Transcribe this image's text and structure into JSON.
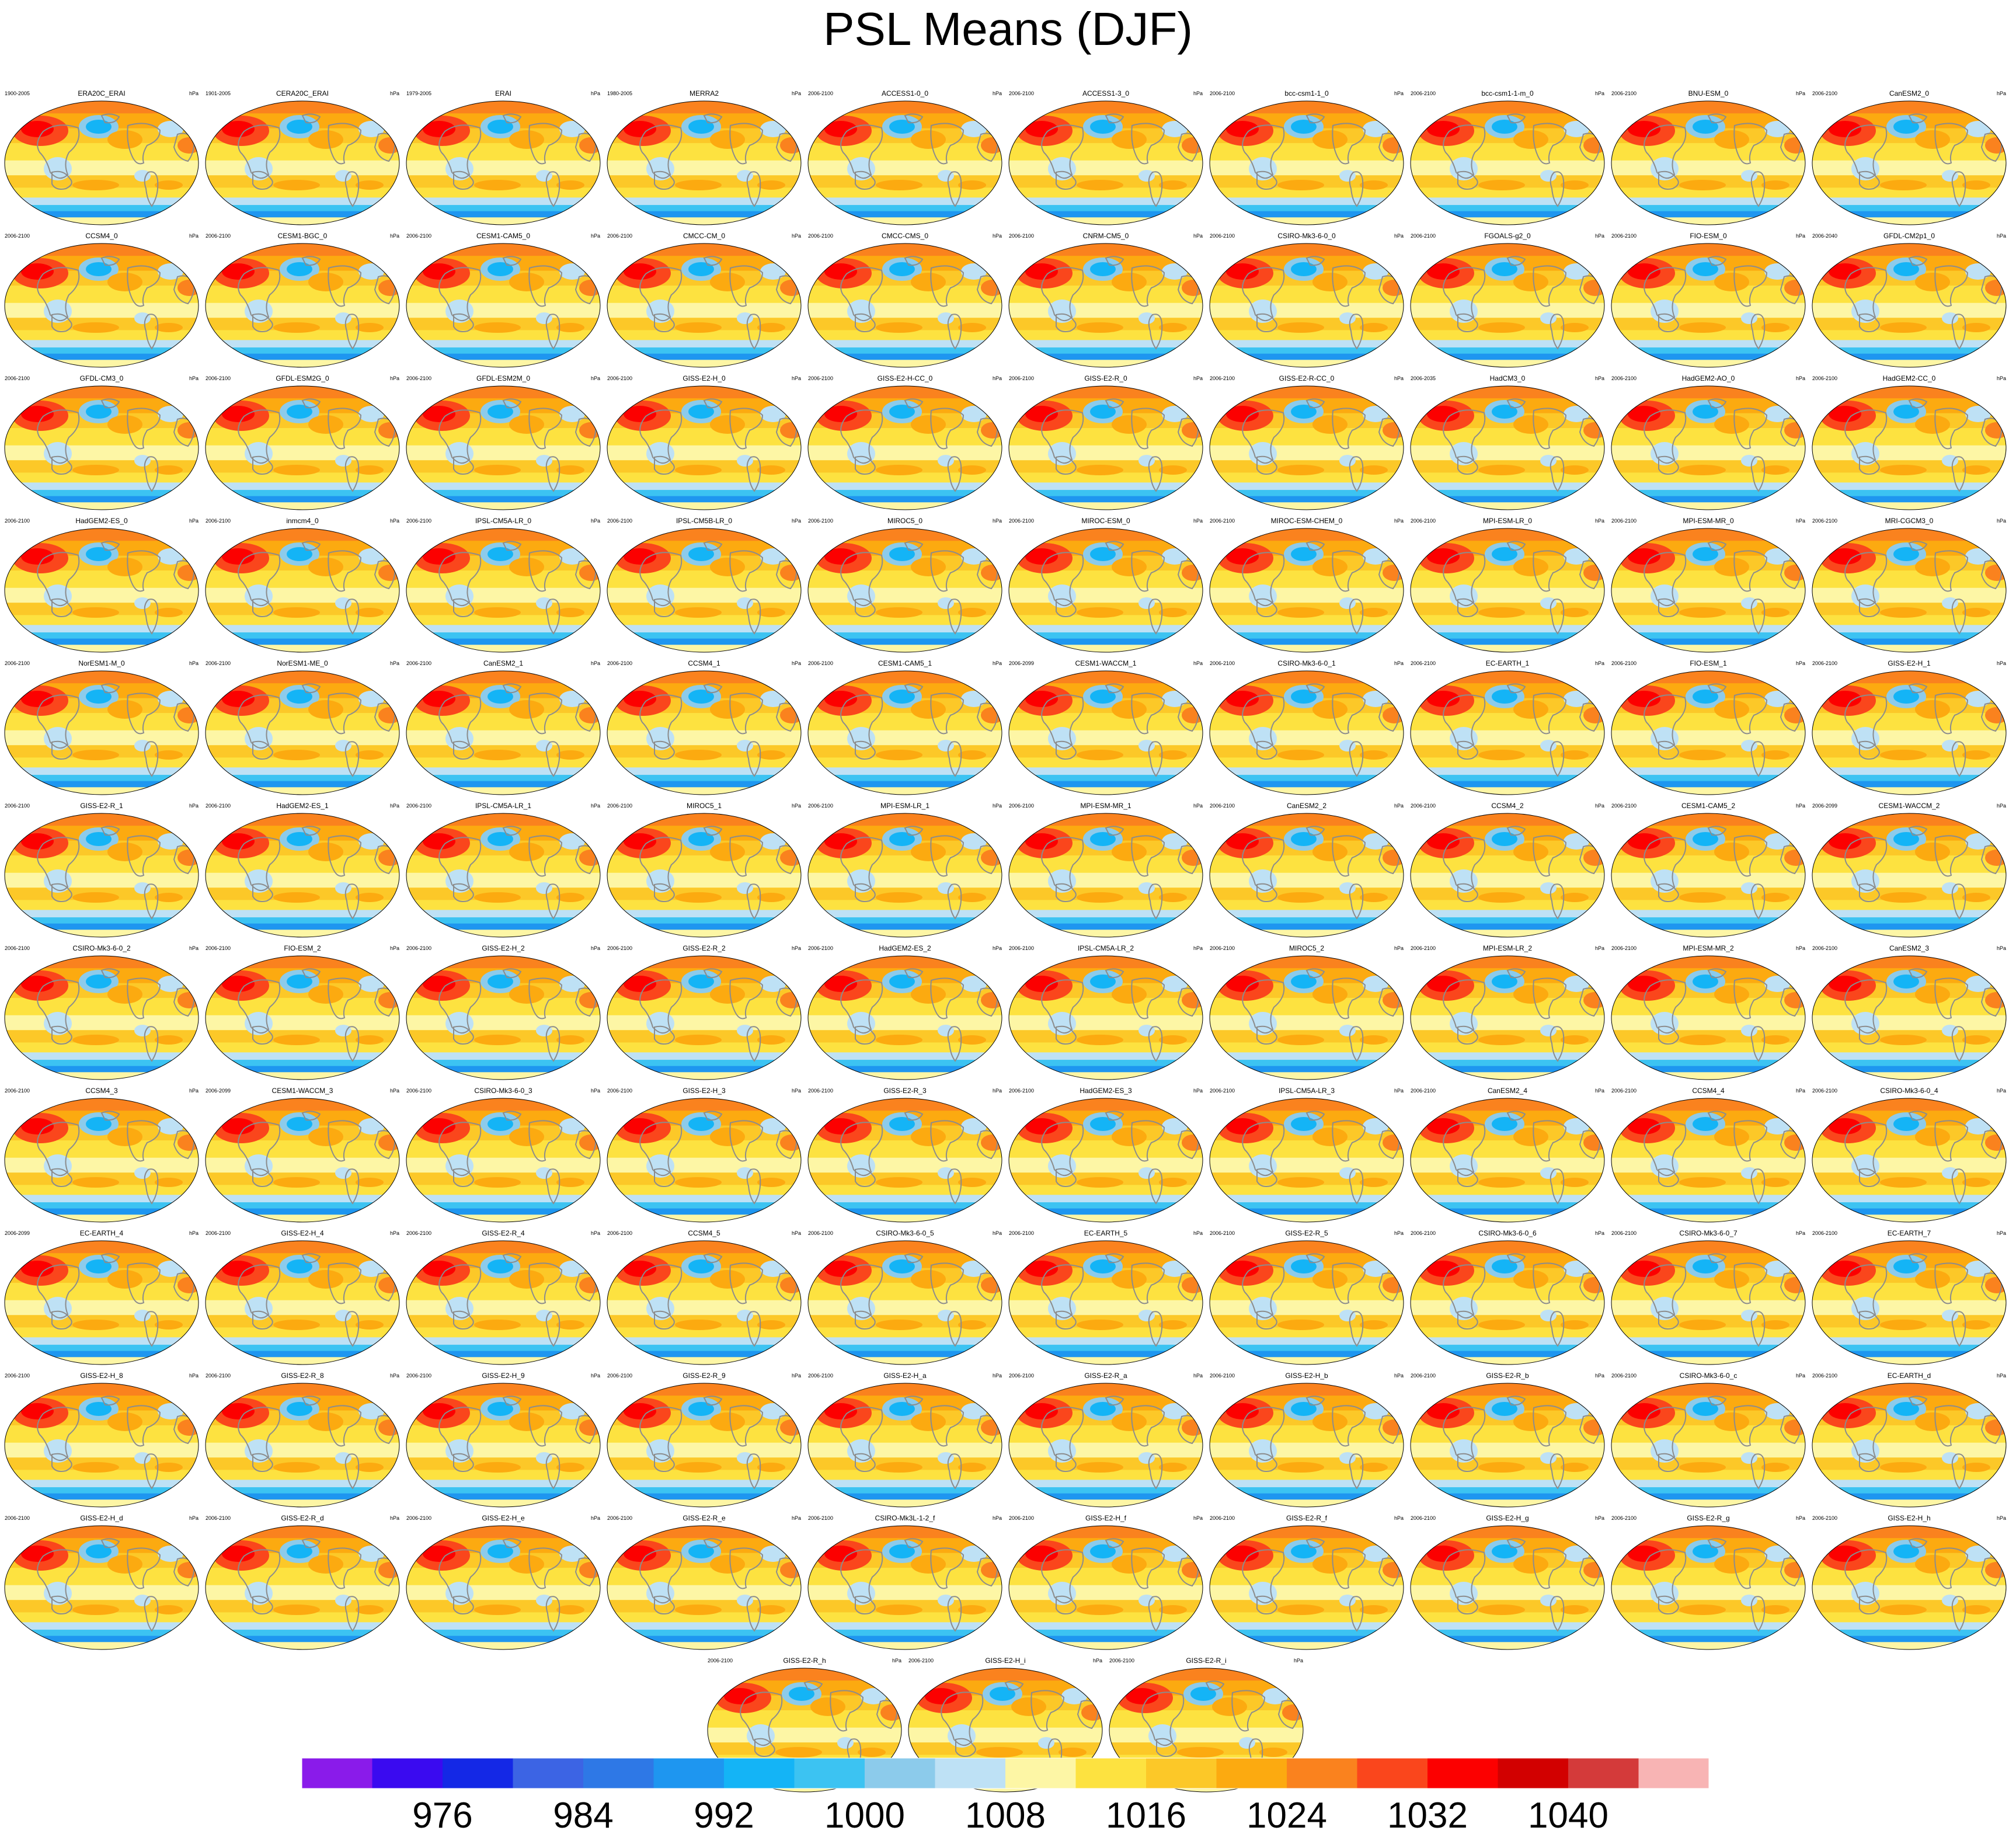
{
  "title": "PSL Means (DJF)",
  "chart_data": {
    "type": "heatmap",
    "title": "PSL Means (DJF)",
    "panel_unit": "hPa",
    "colorbar": {
      "colors": [
        "#8a1bea",
        "#3a0af0",
        "#1428e6",
        "#3c64e4",
        "#2e78e6",
        "#1e96f0",
        "#14b4f6",
        "#3cc3f2",
        "#8ccbeb",
        "#bee1f5",
        "#fdf6a5",
        "#fde240",
        "#fcc828",
        "#fcaa10",
        "#fa821e",
        "#fa461c",
        "#fc0000",
        "#d20000",
        "#d43a3a",
        "#f8b4b4"
      ],
      "ticks": [
        "976",
        "984",
        "992",
        "1000",
        "1008",
        "1016",
        "1024",
        "1032",
        "1040"
      ],
      "tick_values": [
        976,
        984,
        992,
        1000,
        1008,
        1016,
        1024,
        1032,
        1040
      ]
    },
    "panels": [
      {
        "name": "ERA20C_ERAI",
        "period": "1900-2005"
      },
      {
        "name": "CERA20C_ERAI",
        "period": "1901-2005"
      },
      {
        "name": "ERAI",
        "period": "1979-2005"
      },
      {
        "name": "MERRA2",
        "period": "1980-2005"
      },
      {
        "name": "ACCESS1-0_0",
        "period": "2006-2100"
      },
      {
        "name": "ACCESS1-3_0",
        "period": "2006-2100"
      },
      {
        "name": "bcc-csm1-1_0",
        "period": "2006-2100"
      },
      {
        "name": "bcc-csm1-1-m_0",
        "period": "2006-2100"
      },
      {
        "name": "BNU-ESM_0",
        "period": "2006-2100"
      },
      {
        "name": "CanESM2_0",
        "period": "2006-2100"
      },
      {
        "name": "CCSM4_0",
        "period": "2006-2100"
      },
      {
        "name": "CESM1-BGC_0",
        "period": "2006-2100"
      },
      {
        "name": "CESM1-CAM5_0",
        "period": "2006-2100"
      },
      {
        "name": "CMCC-CM_0",
        "period": "2006-2100"
      },
      {
        "name": "CMCC-CMS_0",
        "period": "2006-2100"
      },
      {
        "name": "CNRM-CM5_0",
        "period": "2006-2100"
      },
      {
        "name": "CSIRO-Mk3-6-0_0",
        "period": "2006-2100"
      },
      {
        "name": "FGOALS-g2_0",
        "period": "2006-2100"
      },
      {
        "name": "FIO-ESM_0",
        "period": "2006-2100"
      },
      {
        "name": "GFDL-CM2p1_0",
        "period": "2006-2040"
      },
      {
        "name": "GFDL-CM3_0",
        "period": "2006-2100"
      },
      {
        "name": "GFDL-ESM2G_0",
        "period": "2006-2100"
      },
      {
        "name": "GFDL-ESM2M_0",
        "period": "2006-2100"
      },
      {
        "name": "GISS-E2-H_0",
        "period": "2006-2100"
      },
      {
        "name": "GISS-E2-H-CC_0",
        "period": "2006-2100"
      },
      {
        "name": "GISS-E2-R_0",
        "period": "2006-2100"
      },
      {
        "name": "GISS-E2-R-CC_0",
        "period": "2006-2100"
      },
      {
        "name": "HadCM3_0",
        "period": "2006-2035"
      },
      {
        "name": "HadGEM2-AO_0",
        "period": "2006-2100"
      },
      {
        "name": "HadGEM2-CC_0",
        "period": "2006-2100"
      },
      {
        "name": "HadGEM2-ES_0",
        "period": "2006-2100"
      },
      {
        "name": "inmcm4_0",
        "period": "2006-2100"
      },
      {
        "name": "IPSL-CM5A-LR_0",
        "period": "2006-2100"
      },
      {
        "name": "IPSL-CM5B-LR_0",
        "period": "2006-2100"
      },
      {
        "name": "MIROC5_0",
        "period": "2006-2100"
      },
      {
        "name": "MIROC-ESM_0",
        "period": "2006-2100"
      },
      {
        "name": "MIROC-ESM-CHEM_0",
        "period": "2006-2100"
      },
      {
        "name": "MPI-ESM-LR_0",
        "period": "2006-2100"
      },
      {
        "name": "MPI-ESM-MR_0",
        "period": "2006-2100"
      },
      {
        "name": "MRI-CGCM3_0",
        "period": "2006-2100"
      },
      {
        "name": "NorESM1-M_0",
        "period": "2006-2100"
      },
      {
        "name": "NorESM1-ME_0",
        "period": "2006-2100"
      },
      {
        "name": "CanESM2_1",
        "period": "2006-2100"
      },
      {
        "name": "CCSM4_1",
        "period": "2006-2100"
      },
      {
        "name": "CESM1-CAM5_1",
        "period": "2006-2100"
      },
      {
        "name": "CESM1-WACCM_1",
        "period": "2006-2099"
      },
      {
        "name": "CSIRO-Mk3-6-0_1",
        "period": "2006-2100"
      },
      {
        "name": "EC-EARTH_1",
        "period": "2006-2100"
      },
      {
        "name": "FIO-ESM_1",
        "period": "2006-2100"
      },
      {
        "name": "GISS-E2-H_1",
        "period": "2006-2100"
      },
      {
        "name": "GISS-E2-R_1",
        "period": "2006-2100"
      },
      {
        "name": "HadGEM2-ES_1",
        "period": "2006-2100"
      },
      {
        "name": "IPSL-CM5A-LR_1",
        "period": "2006-2100"
      },
      {
        "name": "MIROC5_1",
        "period": "2006-2100"
      },
      {
        "name": "MPI-ESM-LR_1",
        "period": "2006-2100"
      },
      {
        "name": "MPI-ESM-MR_1",
        "period": "2006-2100"
      },
      {
        "name": "CanESM2_2",
        "period": "2006-2100"
      },
      {
        "name": "CCSM4_2",
        "period": "2006-2100"
      },
      {
        "name": "CESM1-CAM5_2",
        "period": "2006-2100"
      },
      {
        "name": "CESM1-WACCM_2",
        "period": "2006-2099"
      },
      {
        "name": "CSIRO-Mk3-6-0_2",
        "period": "2006-2100"
      },
      {
        "name": "FIO-ESM_2",
        "period": "2006-2100"
      },
      {
        "name": "GISS-E2-H_2",
        "period": "2006-2100"
      },
      {
        "name": "GISS-E2-R_2",
        "period": "2006-2100"
      },
      {
        "name": "HadGEM2-ES_2",
        "period": "2006-2100"
      },
      {
        "name": "IPSL-CM5A-LR_2",
        "period": "2006-2100"
      },
      {
        "name": "MIROC5_2",
        "period": "2006-2100"
      },
      {
        "name": "MPI-ESM-LR_2",
        "period": "2006-2100"
      },
      {
        "name": "MPI-ESM-MR_2",
        "period": "2006-2100"
      },
      {
        "name": "CanESM2_3",
        "period": "2006-2100"
      },
      {
        "name": "CCSM4_3",
        "period": "2006-2100"
      },
      {
        "name": "CESM1-WACCM_3",
        "period": "2006-2099"
      },
      {
        "name": "CSIRO-Mk3-6-0_3",
        "period": "2006-2100"
      },
      {
        "name": "GISS-E2-H_3",
        "period": "2006-2100"
      },
      {
        "name": "GISS-E2-R_3",
        "period": "2006-2100"
      },
      {
        "name": "HadGEM2-ES_3",
        "period": "2006-2100"
      },
      {
        "name": "IPSL-CM5A-LR_3",
        "period": "2006-2100"
      },
      {
        "name": "CanESM2_4",
        "period": "2006-2100"
      },
      {
        "name": "CCSM4_4",
        "period": "2006-2100"
      },
      {
        "name": "CSIRO-Mk3-6-0_4",
        "period": "2006-2100"
      },
      {
        "name": "EC-EARTH_4",
        "period": "2006-2099"
      },
      {
        "name": "GISS-E2-H_4",
        "period": "2006-2100"
      },
      {
        "name": "GISS-E2-R_4",
        "period": "2006-2100"
      },
      {
        "name": "CCSM4_5",
        "period": "2006-2100"
      },
      {
        "name": "CSIRO-Mk3-6-0_5",
        "period": "2006-2100"
      },
      {
        "name": "EC-EARTH_5",
        "period": "2006-2100"
      },
      {
        "name": "GISS-E2-R_5",
        "period": "2006-2100"
      },
      {
        "name": "CSIRO-Mk3-6-0_6",
        "period": "2006-2100"
      },
      {
        "name": "CSIRO-Mk3-6-0_7",
        "period": "2006-2100"
      },
      {
        "name": "EC-EARTH_7",
        "period": "2006-2100"
      },
      {
        "name": "GISS-E2-H_8",
        "period": "2006-2100"
      },
      {
        "name": "GISS-E2-R_8",
        "period": "2006-2100"
      },
      {
        "name": "GISS-E2-H_9",
        "period": "2006-2100"
      },
      {
        "name": "GISS-E2-R_9",
        "period": "2006-2100"
      },
      {
        "name": "GISS-E2-H_a",
        "period": "2006-2100"
      },
      {
        "name": "GISS-E2-R_a",
        "period": "2006-2100"
      },
      {
        "name": "GISS-E2-H_b",
        "period": "2006-2100"
      },
      {
        "name": "GISS-E2-R_b",
        "period": "2006-2100"
      },
      {
        "name": "CSIRO-Mk3-6-0_c",
        "period": "2006-2100"
      },
      {
        "name": "EC-EARTH_d",
        "period": "2006-2100"
      },
      {
        "name": "GISS-E2-H_d",
        "period": "2006-2100"
      },
      {
        "name": "GISS-E2-R_d",
        "period": "2006-2100"
      },
      {
        "name": "GISS-E2-H_e",
        "period": "2006-2100"
      },
      {
        "name": "GISS-E2-R_e",
        "period": "2006-2100"
      },
      {
        "name": "CSIRO-Mk3L-1-2_f",
        "period": "2006-2100"
      },
      {
        "name": "GISS-E2-H_f",
        "period": "2006-2100"
      },
      {
        "name": "GISS-E2-R_f",
        "period": "2006-2100"
      },
      {
        "name": "GISS-E2-H_g",
        "period": "2006-2100"
      },
      {
        "name": "GISS-E2-R_g",
        "period": "2006-2100"
      },
      {
        "name": "GISS-E2-H_h",
        "period": "2006-2100"
      },
      {
        "name": "GISS-E2-R_h",
        "period": "2006-2100"
      },
      {
        "name": "GISS-E2-H_i",
        "period": "2006-2100"
      },
      {
        "name": "GISS-E2-R_i",
        "period": "2006-2100"
      }
    ]
  }
}
